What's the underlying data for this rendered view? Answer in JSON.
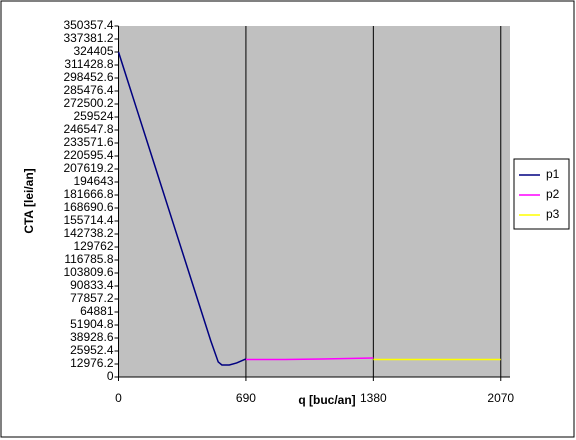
{
  "chart_data": {
    "type": "line",
    "y_label": "CTA  [lei/an]",
    "x_label": "q [buc/an]",
    "xlim": [
      0,
      2120
    ],
    "xticks": [
      0,
      690,
      1380,
      2070
    ],
    "ylim": [
      0,
      350357.4
    ],
    "yticks": [
      0,
      12976.2,
      25952.4,
      38928.6,
      51904.8,
      64881,
      77857.2,
      90833.4,
      103809.6,
      116785.8,
      129762,
      142738.2,
      155714.4,
      168690.6,
      181666.8,
      194643,
      207619.2,
      220595.4,
      233571.6,
      246547.8,
      259524,
      272500.2,
      285476.4,
      298452.6,
      311428.8,
      324405,
      337381.2,
      350357.4
    ],
    "grid": "x",
    "legend": "right",
    "series": [
      {
        "name": "p1",
        "color": "#000080",
        "x": [
          0,
          100,
          200,
          300,
          400,
          500,
          540,
          560,
          600,
          640,
          690
        ],
        "values": [
          324405,
          266700,
          209000,
          151300,
          93600,
          35900,
          15000,
          12000,
          12000,
          14000,
          18000
        ]
      },
      {
        "name": "p2",
        "color": "#ff00ff",
        "x": [
          690,
          900,
          1100,
          1380
        ],
        "values": [
          17500,
          17500,
          18000,
          19000
        ]
      },
      {
        "name": "p3",
        "color": "#ffff00",
        "x": [
          1380,
          1700,
          2070
        ],
        "values": [
          17500,
          17500,
          17500
        ]
      }
    ]
  }
}
